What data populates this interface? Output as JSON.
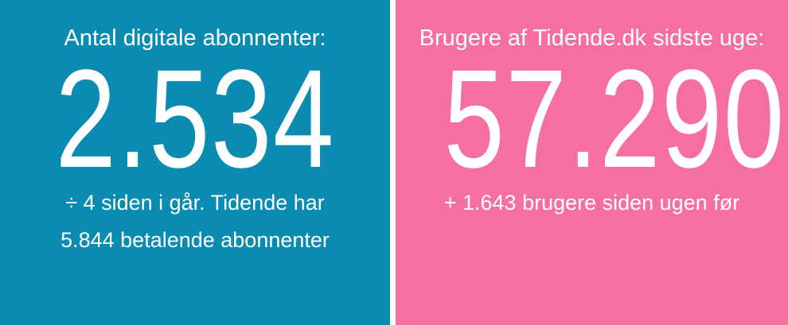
{
  "panels": [
    {
      "title": "Antal digitale abonnenter:",
      "number": "2.534",
      "lines": [
        "÷ 4 siden i går. Tidende har",
        "5.844 betalende abonnenter"
      ]
    },
    {
      "title": "Brugere af Tidende.dk sidste uge:",
      "number": "57.290",
      "lines": [
        "+ 1.643 brugere siden ugen før"
      ]
    }
  ]
}
